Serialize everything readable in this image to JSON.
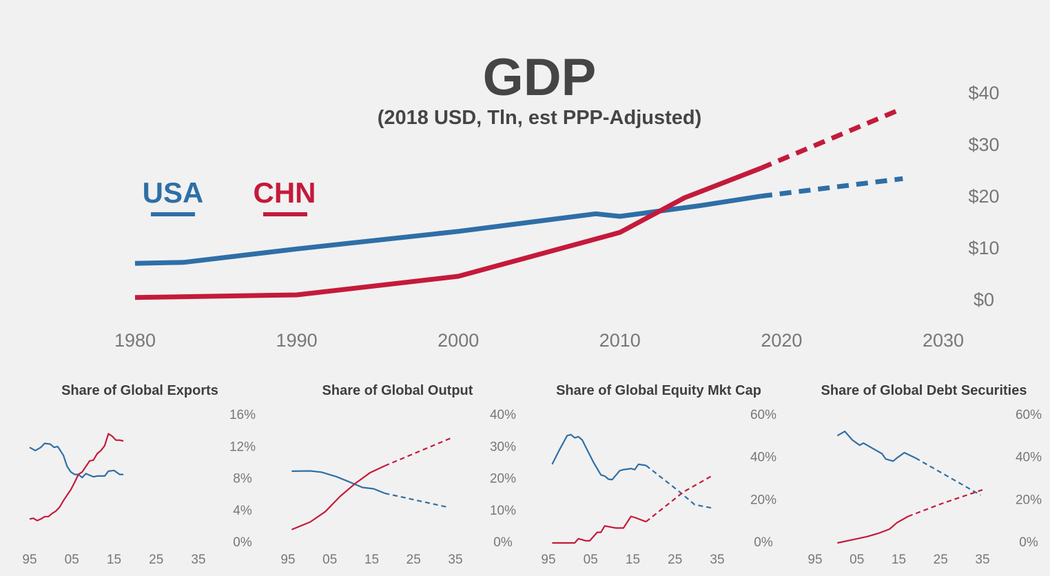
{
  "colors": {
    "usa": "#2e6fa6",
    "chn": "#c41a3b",
    "background": "#f1f1f1",
    "text": "#454545",
    "tick": "#777777"
  },
  "chart_data": [
    {
      "type": "line",
      "title": "GDP",
      "subtitle": "(2018 USD, Tln, est PPP-Adjusted)",
      "xlim": [
        1980,
        2030
      ],
      "ylim": [
        0,
        40
      ],
      "x_ticks": [
        "1980",
        "1990",
        "2000",
        "2010",
        "2020",
        "2030"
      ],
      "y_ticks": [
        "$0",
        "$10",
        "$20",
        "$30",
        "$40"
      ],
      "y_axis_position": "right",
      "legend_position": "top-left",
      "series": [
        {
          "name": "USA",
          "color": "#2e6fa6",
          "points": [
            [
              1980,
              7.3
            ],
            [
              1983,
              7.5
            ],
            [
              1990,
              10.1
            ],
            [
              2000,
              13.5
            ],
            [
              2008.5,
              16.9
            ],
            [
              2010,
              16.4
            ],
            [
              2015,
              18.5
            ],
            [
              2018.7,
              20.3
            ]
          ],
          "projection": [
            [
              2018.7,
              20.3
            ],
            [
              2027.5,
              23.7
            ]
          ]
        },
        {
          "name": "CHN",
          "color": "#c41a3b",
          "points": [
            [
              1980,
              0.7
            ],
            [
              1990,
              1.2
            ],
            [
              2000,
              4.8
            ],
            [
              2010,
              13.3
            ],
            [
              2014,
              20.0
            ],
            [
              2018.7,
              25.7
            ]
          ],
          "projection": [
            [
              2018.7,
              25.7
            ],
            [
              2027.5,
              37.3
            ]
          ]
        }
      ]
    },
    {
      "type": "line",
      "title": "Share of Global Exports",
      "xlim": [
        1994,
        2039
      ],
      "ylim": [
        0,
        16
      ],
      "x_ticks": [
        "95",
        "05",
        "15",
        "25",
        "35"
      ],
      "y_ticks": [
        "0%",
        "4%",
        "8%",
        "12%",
        "16%"
      ],
      "series": [
        {
          "name": "USA",
          "color": "#2e6fa6",
          "points": [
            [
              1994,
              12.0
            ],
            [
              1995.5,
              11.6
            ],
            [
              1997,
              12.0
            ],
            [
              1998,
              12.5
            ],
            [
              1999.5,
              12.4
            ],
            [
              2000.5,
              12.0
            ],
            [
              2001.5,
              12.1
            ],
            [
              2003,
              11.0
            ],
            [
              2004,
              9.6
            ],
            [
              2005,
              8.9
            ],
            [
              2006,
              8.6
            ],
            [
              2007,
              8.6
            ],
            [
              2008,
              8.2
            ],
            [
              2009,
              8.7
            ],
            [
              2010,
              8.5
            ],
            [
              2011,
              8.3
            ],
            [
              2012,
              8.4
            ],
            [
              2014,
              8.4
            ],
            [
              2015,
              9.0
            ],
            [
              2016.5,
              9.1
            ],
            [
              2018,
              8.6
            ],
            [
              2019,
              8.6
            ]
          ]
        },
        {
          "name": "CHN",
          "color": "#c41a3b",
          "points": [
            [
              1994,
              3.0
            ],
            [
              1995,
              3.1
            ],
            [
              1996,
              2.8
            ],
            [
              1997,
              3.0
            ],
            [
              1998,
              3.3
            ],
            [
              1999,
              3.3
            ],
            [
              2000,
              3.7
            ],
            [
              2001,
              4.0
            ],
            [
              2002,
              4.5
            ],
            [
              2003,
              5.3
            ],
            [
              2004,
              6.0
            ],
            [
              2005,
              6.7
            ],
            [
              2006,
              7.6
            ],
            [
              2007,
              8.6
            ],
            [
              2008,
              8.9
            ],
            [
              2009,
              9.6
            ],
            [
              2010,
              10.3
            ],
            [
              2011,
              10.4
            ],
            [
              2012,
              11.2
            ],
            [
              2013,
              11.6
            ],
            [
              2014,
              12.2
            ],
            [
              2015,
              13.7
            ],
            [
              2016,
              13.4
            ],
            [
              2017,
              12.9
            ],
            [
              2018,
              12.9
            ],
            [
              2019,
              12.8
            ]
          ]
        }
      ]
    },
    {
      "type": "line",
      "title": "Share of Global Output",
      "xlim": [
        1994,
        2039
      ],
      "ylim": [
        0,
        40
      ],
      "x_ticks": [
        "95",
        "05",
        "15",
        "25",
        "35"
      ],
      "y_ticks": [
        "0%",
        "10%",
        "20%",
        "30%",
        "40%"
      ],
      "series": [
        {
          "name": "USA",
          "color": "#2e6fa6",
          "points": [
            [
              1995,
              22.5
            ],
            [
              2000,
              22.6
            ],
            [
              2003,
              22.2
            ],
            [
              2007,
              20.8
            ],
            [
              2010,
              19.4
            ],
            [
              2014,
              17.4
            ],
            [
              2017,
              17.0
            ],
            [
              2020,
              15.6
            ]
          ],
          "projection": [
            [
              2020,
              15.6
            ],
            [
              2037,
              11.2
            ]
          ]
        },
        {
          "name": "CHN",
          "color": "#c41a3b",
          "points": [
            [
              1995,
              4.2
            ],
            [
              2000,
              6.6
            ],
            [
              2004,
              9.8
            ],
            [
              2008,
              14.6
            ],
            [
              2012,
              18.6
            ],
            [
              2016,
              22.0
            ],
            [
              2020,
              24.2
            ]
          ],
          "projection": [
            [
              2020,
              24.2
            ],
            [
              2038,
              33.0
            ]
          ]
        }
      ]
    },
    {
      "type": "line",
      "title": "Share of Global Equity Mkt Cap",
      "xlim": [
        1994,
        2039
      ],
      "ylim": [
        0,
        60
      ],
      "x_ticks": [
        "95",
        "05",
        "15",
        "25",
        "35"
      ],
      "y_ticks": [
        "0%",
        "20%",
        "40%",
        "60%"
      ],
      "series": [
        {
          "name": "USA",
          "color": "#2e6fa6",
          "points": [
            [
              1995,
              37.0
            ],
            [
              1997,
              44.0
            ],
            [
              1999,
              50.5
            ],
            [
              2000,
              51.0
            ],
            [
              2001,
              49.5
            ],
            [
              2002,
              50.0
            ],
            [
              2003,
              48.5
            ],
            [
              2004,
              45.0
            ],
            [
              2006,
              38.0
            ],
            [
              2008,
              32.0
            ],
            [
              2009,
              31.5
            ],
            [
              2010,
              30.0
            ],
            [
              2011,
              29.8
            ],
            [
              2013,
              34.0
            ],
            [
              2014,
              34.5
            ],
            [
              2016,
              35.0
            ],
            [
              2017,
              34.5
            ],
            [
              2018,
              37.0
            ],
            [
              2020,
              36.5
            ]
          ],
          "projection": [
            [
              2020,
              36.5
            ],
            [
              2029,
              24.0
            ],
            [
              2033,
              18.0
            ],
            [
              2038,
              16.3
            ]
          ]
        },
        {
          "name": "CHN",
          "color": "#c41a3b",
          "points": [
            [
              1995,
              0.0
            ],
            [
              2001,
              0.0
            ],
            [
              2002,
              2.0
            ],
            [
              2004,
              1.0
            ],
            [
              2005,
              1.0
            ],
            [
              2007,
              5.0
            ],
            [
              2008,
              5.0
            ],
            [
              2009,
              8.0
            ],
            [
              2012,
              7.0
            ],
            [
              2014,
              7.0
            ],
            [
              2016,
              12.5
            ],
            [
              2017,
              12.0
            ],
            [
              2020,
              10.0
            ]
          ],
          "projection": [
            [
              2020,
              10.0
            ],
            [
              2030,
              24.0
            ],
            [
              2038,
              32.0
            ]
          ]
        }
      ]
    },
    {
      "type": "line",
      "title": "Share of Global Debt Securities",
      "xlim": [
        1994,
        2039
      ],
      "ylim": [
        0,
        60
      ],
      "x_ticks": [
        "95",
        "05",
        "15",
        "25",
        "35"
      ],
      "y_ticks": [
        "0%",
        "20%",
        "40%",
        "60%"
      ],
      "series": [
        {
          "name": "USA",
          "color": "#2e6fa6",
          "points": [
            [
              2000,
              50.5
            ],
            [
              2002,
              52.5
            ],
            [
              2004,
              48.5
            ],
            [
              2006,
              46.0
            ],
            [
              2007,
              47.0
            ],
            [
              2009,
              45.0
            ],
            [
              2012,
              42.0
            ],
            [
              2013,
              39.5
            ],
            [
              2015,
              38.5
            ],
            [
              2016,
              40.0
            ],
            [
              2018,
              42.5
            ],
            [
              2021,
              40.0
            ]
          ],
          "projection": [
            [
              2021,
              40.0
            ],
            [
              2038.5,
              22.5
            ]
          ]
        },
        {
          "name": "CHN",
          "color": "#c41a3b",
          "points": [
            [
              2000,
              0.0
            ],
            [
              2004,
              1.5
            ],
            [
              2008,
              3.0
            ],
            [
              2011,
              4.5
            ],
            [
              2014,
              6.5
            ],
            [
              2016,
              9.5
            ],
            [
              2019,
              12.5
            ]
          ],
          "projection": [
            [
              2019,
              12.5
            ],
            [
              2028,
              18.5
            ],
            [
              2039,
              25.0
            ]
          ]
        }
      ]
    }
  ]
}
